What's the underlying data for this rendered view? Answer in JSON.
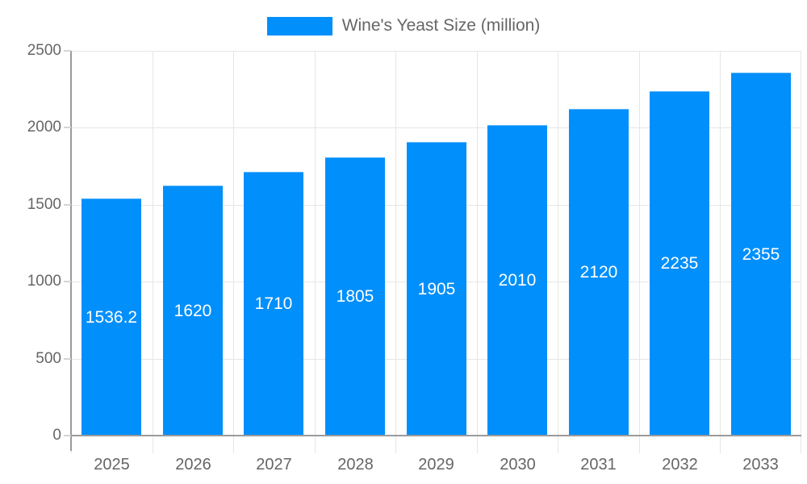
{
  "chart_data": {
    "type": "bar",
    "title": "",
    "series": [
      {
        "name": "Wine's Yeast Size (million)",
        "values": [
          1536.2,
          1620,
          1710,
          1805,
          1905,
          2010,
          2120,
          2235,
          2355
        ]
      }
    ],
    "categories": [
      "2025",
      "2026",
      "2027",
      "2028",
      "2029",
      "2030",
      "2031",
      "2032",
      "2033"
    ],
    "xlabel": "",
    "ylabel": "",
    "ylim": [
      0,
      2500
    ],
    "yticks": [
      "0",
      "500",
      "1000",
      "1500",
      "2000",
      "2500"
    ],
    "grid": true,
    "legend_position": "top",
    "data_labels": "inside-center-white",
    "colors": {
      "bar": "#008FFB",
      "bar_label": "#ffffff",
      "axis_line": "#9b9b9b",
      "gridline": "#e6e6e6",
      "tick_text": "#666666",
      "legend_text": "#666666"
    }
  }
}
